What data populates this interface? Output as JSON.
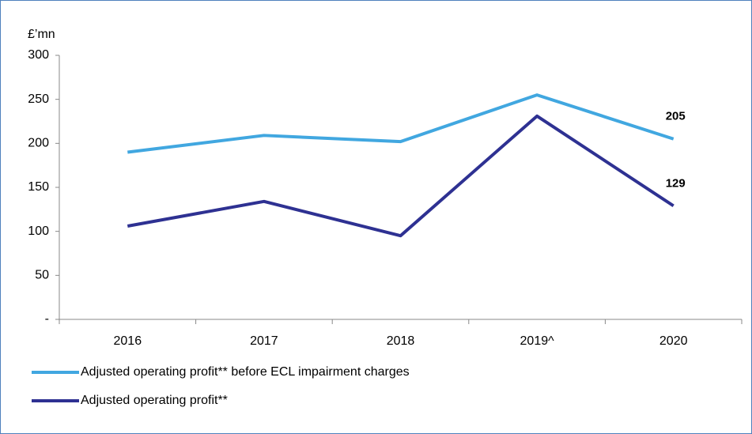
{
  "chart_data": {
    "type": "line",
    "ylabel": "£’mn",
    "categories": [
      "2016",
      "2017",
      "2018",
      "2019^",
      "2020"
    ],
    "series": [
      {
        "name": "Adjusted operating profit** before ECL impairment charges",
        "color": "#41a7e0",
        "values": [
          190,
          209,
          202,
          255,
          205
        ]
      },
      {
        "name": "Adjusted operating profit**",
        "color": "#2e3192",
        "values": [
          106,
          134,
          95,
          231,
          129
        ]
      }
    ],
    "ylim": [
      0,
      300
    ],
    "yticks": [
      {
        "value": 0,
        "label": "-"
      },
      50,
      100,
      150,
      200,
      250,
      300
    ],
    "grid": false,
    "data_labels": "last",
    "legend": "bottom"
  }
}
